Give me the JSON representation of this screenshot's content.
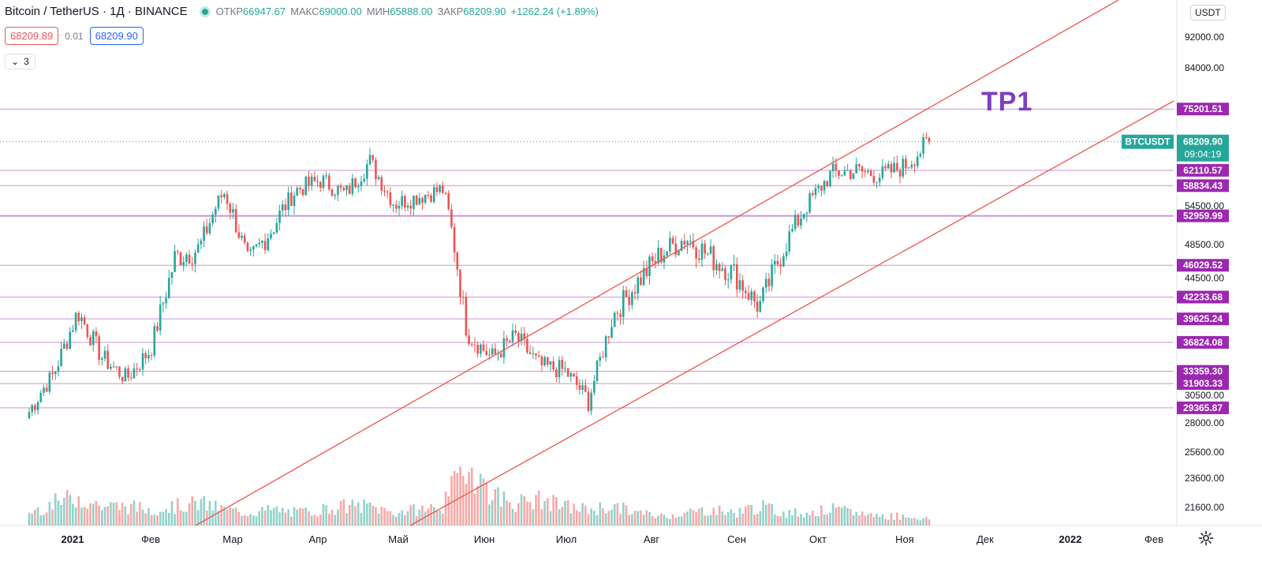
{
  "legend": {
    "symbol_title": "Bitcoin / TetherUS · 1Д · BINANCE",
    "open_label": "ОТКР",
    "open_value": "66947.67",
    "high_label": "МАКС",
    "high_value": "69000.00",
    "low_label": "МИН",
    "low_value": "65888.00",
    "close_label": "ЗАКР",
    "close_value": "68209.90",
    "change": "+1262.24 (+1.89%)"
  },
  "trade": {
    "sell_price": "68209.89",
    "spread": "0.01",
    "buy_price": "68209.90"
  },
  "indicators_toggle": {
    "count": "3"
  },
  "currency": "USDT",
  "annotation_text": "TP1",
  "colors": {
    "up": "#26a69a",
    "down": "#ef5350",
    "level_line": "#ce93d8",
    "level_tag": "#9c27b0",
    "channel": "#ef5350",
    "price_tag": "#26a69a"
  },
  "chart_data": {
    "type": "candlestick",
    "symbol": "BTCUSDT",
    "timeframe": "1Д",
    "y_axis_ticks": [
      "92000.00",
      "84000.00",
      "54500.00",
      "48500.00",
      "44500.00",
      "30500.00",
      "28000.00",
      "25600.00",
      "23600.00",
      "21600.00"
    ],
    "x_axis_ticks": [
      "2021",
      "Фев",
      "Мар",
      "Апр",
      "Май",
      "Июн",
      "Июл",
      "Авг",
      "Сен",
      "Окт",
      "Ноя",
      "Дек",
      "2022",
      "Фев"
    ],
    "horizontal_levels": [
      "75201.51",
      "62110.57",
      "58834.43",
      "52959.99",
      "46029.52",
      "42233.68",
      "39625.24",
      "36824.08",
      "33359.30",
      "31903.33",
      "29365.87"
    ],
    "current_price": {
      "symbol": "BTCUSDT",
      "value": "68209.90",
      "countdown": "09:04:19"
    },
    "channel": "ascending channel, two parallel lines",
    "close_path": [
      29000,
      33000,
      40500,
      35000,
      32500,
      36000,
      47000,
      48000,
      57500,
      46000,
      51000,
      58000,
      60000,
      57000,
      64000,
      55000,
      56500,
      58000,
      38000,
      35000,
      37500,
      34000,
      33500,
      30000,
      40000,
      44000,
      47500,
      49500,
      47000,
      45000,
      41000,
      48000,
      55000,
      61500,
      62000,
      61000,
      63000,
      68200
    ],
    "volume_shape": [
      0.2,
      0.35,
      0.45,
      0.3,
      0.3,
      0.25,
      0.3,
      0.35,
      0.25,
      0.2,
      0.25,
      0.2,
      0.25,
      0.3,
      0.3,
      0.2,
      0.25,
      0.3,
      1.0,
      0.5,
      0.35,
      0.4,
      0.3,
      0.25,
      0.3,
      0.2,
      0.15,
      0.2,
      0.25,
      0.2,
      0.3,
      0.2,
      0.2,
      0.25,
      0.2,
      0.15,
      0.15,
      0.1
    ]
  }
}
